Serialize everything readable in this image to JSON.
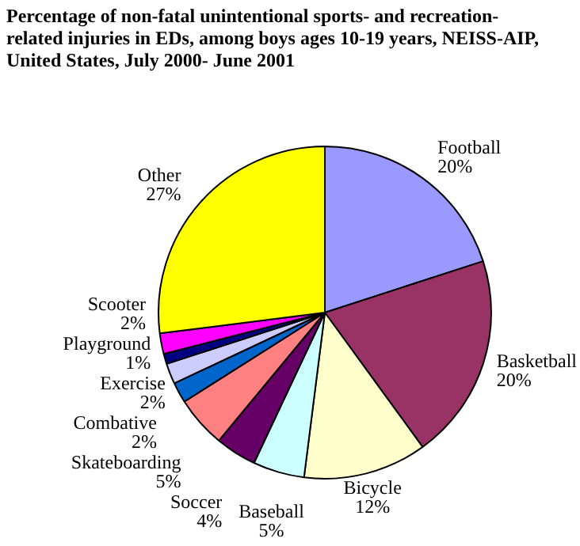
{
  "chart_data": {
    "type": "pie",
    "title": "Percentage of non-fatal unintentional sports- and recreation-related injuries in EDs, among boys ages 10-19 years, NEISS-AIP, United States, July 2000- June 2001",
    "categories": [
      "Football",
      "Basketball",
      "Bicycle",
      "Baseball",
      "Soccer",
      "Skateboarding",
      "Combative",
      "Exercise",
      "Playground",
      "Scooter",
      "Other"
    ],
    "values": [
      20,
      20,
      12,
      5,
      4,
      5,
      2,
      2,
      1,
      2,
      27
    ],
    "colors": [
      "#9999ff",
      "#993366",
      "#ffffcc",
      "#ccffff",
      "#660066",
      "#ff8080",
      "#0066cc",
      "#ccccff",
      "#000080",
      "#ff00ff",
      "#ffff00"
    ],
    "value_labels": [
      "20%",
      "20%",
      "12%",
      "5%",
      "4%",
      "5%",
      "2%",
      "2%",
      "1%",
      "2%",
      "27%"
    ],
    "legend": false
  }
}
